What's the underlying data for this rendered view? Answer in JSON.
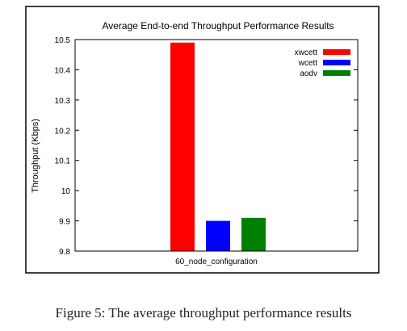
{
  "caption": "Figure 5: The average throughput performance results",
  "colors": {
    "xwcett": "#ff0000",
    "wcett": "#0000ff",
    "aodv": "#008000"
  },
  "chart_data": {
    "type": "bar",
    "title": "Average End-to-end Throughput Performance Results",
    "xlabel": "",
    "ylabel": "Throughput (Kbps)",
    "categories": [
      "60_node_configuration"
    ],
    "ylim": [
      9.8,
      10.5
    ],
    "yticks": [
      "9.8",
      "9.9",
      "10",
      "10.1",
      "10.2",
      "10.3",
      "10.4",
      "10.5"
    ],
    "grid": false,
    "legend_position": "top-right",
    "series": [
      {
        "name": "xwcett",
        "values": [
          10.49
        ]
      },
      {
        "name": "wcett",
        "values": [
          9.9
        ]
      },
      {
        "name": "aodv",
        "values": [
          9.91
        ]
      }
    ]
  }
}
